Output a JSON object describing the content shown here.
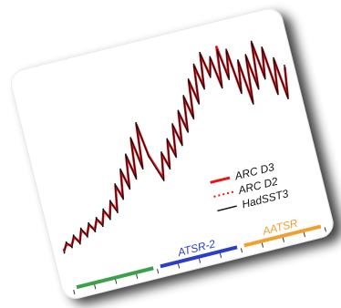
{
  "chart_data": {
    "type": "line",
    "title": "",
    "xlabel": "",
    "ylabel": "",
    "grid": false,
    "legend_placement": "bottom-right",
    "x": [
      0,
      1,
      2,
      3,
      4,
      5,
      6,
      7,
      8,
      9,
      10,
      11,
      12,
      13,
      14,
      15,
      16,
      17,
      18,
      19,
      20,
      21,
      22,
      23,
      24,
      25,
      26,
      27,
      28,
      29,
      30,
      31,
      32,
      33,
      34,
      35,
      36,
      37,
      38,
      39,
      40,
      41,
      42,
      43,
      44,
      45,
      46,
      47,
      48,
      49,
      50,
      51,
      52,
      53,
      54,
      55,
      56,
      57,
      58,
      59
    ],
    "series": [
      {
        "name": "ARC D3",
        "style": "solid",
        "color": "#e8141b",
        "values": [
          2,
          6,
          4,
          9,
          5,
          12,
          8,
          14,
          10,
          16,
          12,
          20,
          15,
          24,
          18,
          33,
          25,
          41,
          30,
          49,
          35,
          58,
          40,
          66,
          46,
          38,
          30,
          45,
          36,
          52,
          42,
          60,
          48,
          67,
          55,
          75,
          62,
          84,
          70,
          92,
          78,
          98,
          84,
          94,
          76,
          100,
          80,
          96,
          70,
          88,
          62,
          90,
          70,
          97,
          75,
          92,
          64,
          84,
          60,
          78
        ]
      },
      {
        "name": "ARC D2",
        "style": "dotted",
        "color": "#e8141b",
        "values": [
          3,
          5,
          5,
          8,
          6,
          11,
          9,
          13,
          11,
          15,
          13,
          19,
          16,
          23,
          19,
          32,
          26,
          40,
          31,
          48,
          36,
          57,
          41,
          65,
          47,
          39,
          31,
          44,
          37,
          51,
          43,
          59,
          49,
          66,
          56,
          74,
          63,
          83,
          71,
          91,
          79,
          97,
          85,
          93,
          77,
          99,
          81,
          95,
          71,
          87,
          63,
          89,
          71,
          96,
          76,
          91,
          65,
          83,
          61,
          77
        ]
      },
      {
        "name": "HadSST3",
        "style": "solid",
        "color": "#111111",
        "values": [
          1,
          7,
          3,
          10,
          4,
          13,
          7,
          15,
          9,
          17,
          11,
          21,
          14,
          25,
          17,
          34,
          24,
          42,
          29,
          50,
          34,
          59,
          39,
          67,
          45,
          37,
          29,
          46,
          35,
          53,
          41,
          61,
          47,
          68,
          54,
          76,
          61,
          85,
          69,
          93,
          77,
          99,
          83,
          95,
          75,
          98,
          79,
          97,
          69,
          89,
          61,
          91,
          69,
          98,
          74,
          93,
          63,
          85,
          59,
          79
        ]
      }
    ],
    "ylim": [
      -10,
      105
    ],
    "eras": [
      {
        "label": "",
        "color": "#3aa14a"
      },
      {
        "label": "ATSR-2",
        "color": "#2a3ec9"
      },
      {
        "label": "AATSR",
        "color": "#f0a030"
      }
    ]
  },
  "legend": {
    "items": [
      {
        "label": "ARC D3"
      },
      {
        "label": "ARC D2"
      },
      {
        "label": "HadSST3"
      }
    ]
  }
}
